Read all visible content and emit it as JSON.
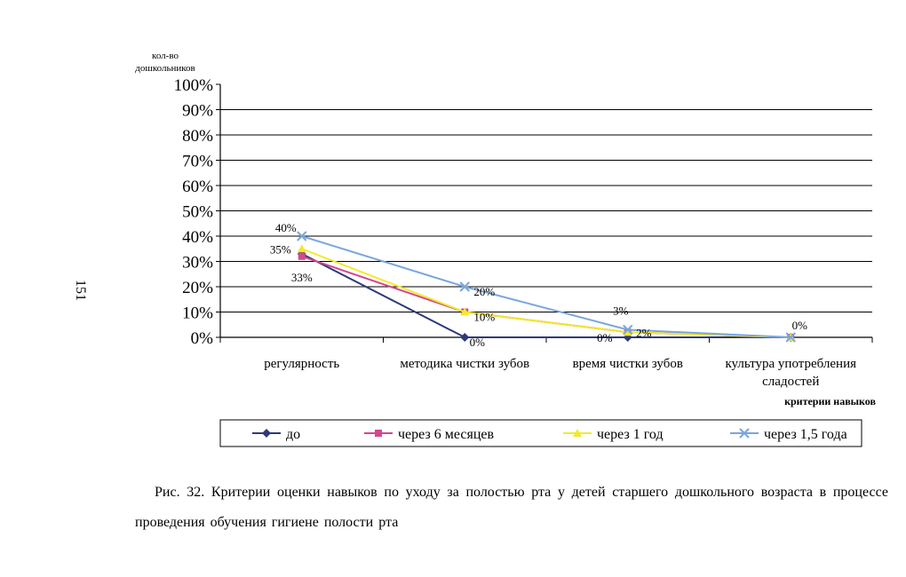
{
  "page_number": "151",
  "caption": "Рис. 32. Критерии оценки навыков по уходу за полостью рта у детей старшего дошкольного возраста в процессе проведения обучения гигиене полости рта",
  "chart_data": {
    "type": "line",
    "title": "",
    "ylabel": [
      "кол-во",
      "дошкольников"
    ],
    "xlabel": "критерии навыков",
    "categories": [
      [
        "регулярность"
      ],
      [
        "методика чистки зубов"
      ],
      [
        "время чистки зубов"
      ],
      [
        "культура употребления",
        "сладостей"
      ]
    ],
    "yticks": [
      "0%",
      "10%",
      "20%",
      "30%",
      "40%",
      "50%",
      "60%",
      "70%",
      "80%",
      "90%",
      "100%"
    ],
    "ylim": [
      0,
      100
    ],
    "grid": true,
    "legend_position": "bottom",
    "series": [
      {
        "name": "до",
        "values": [
          33,
          0,
          0,
          0
        ],
        "color": "#2e3a78",
        "marker": "diamond",
        "labels": [
          "33%",
          "0%",
          "0%",
          ""
        ]
      },
      {
        "name": "через 6 месяцев",
        "values": [
          32,
          10,
          2,
          0
        ],
        "color": "#d4478e",
        "marker": "square",
        "labels": [
          "",
          "",
          "",
          ""
        ]
      },
      {
        "name": "через 1 год",
        "values": [
          35,
          10,
          2,
          0
        ],
        "color": "#f3e92a",
        "marker": "triangle",
        "labels": [
          "35%",
          "10%",
          "2%",
          ""
        ]
      },
      {
        "name": "через 1,5 года",
        "values": [
          40,
          20,
          3,
          0
        ],
        "color": "#7aa6dc",
        "marker": "x",
        "labels": [
          "40%",
          "20%",
          "3%",
          "0%"
        ]
      }
    ]
  }
}
